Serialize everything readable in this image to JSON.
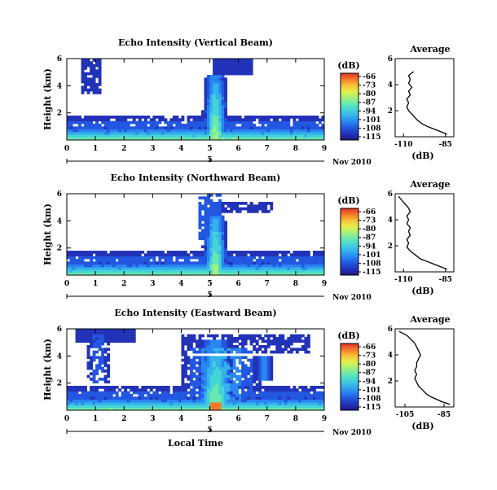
{
  "colors": {
    "colormap": [
      "#1e1a80",
      "#2233b8",
      "#2357e0",
      "#2a86f0",
      "#34b2ec",
      "#45d4d8",
      "#6ae8b0",
      "#a8f07a",
      "#e4f04a",
      "#f8c03a",
      "#f47a2a",
      "#e0302a"
    ],
    "axis": "#000000",
    "profile_line": "#000000",
    "background": "#ffffff"
  },
  "chart_data": [
    {
      "type": "heatmap",
      "title": "Echo Intensity (Vertical Beam)",
      "ylabel": "Height (km)",
      "x_ticks": [
        "0",
        "1",
        "2",
        "3",
        "4",
        "5",
        "6",
        "7",
        "8",
        "9"
      ],
      "y_ticks": [
        "2",
        "4",
        "6"
      ],
      "date_tick": "5",
      "date_label": "Nov 2010",
      "xlim": [
        0,
        9
      ],
      "ylim": [
        0,
        6
      ],
      "colorbar": {
        "unit": "(dB)",
        "ticks": [
          "-66",
          "-73",
          "-80",
          "-87",
          "-94",
          "-101",
          "-108",
          "-115"
        ],
        "range": [
          -115,
          -66
        ]
      },
      "profile": {
        "title": "Average",
        "xlabel": "(dB)",
        "x_ticks": [
          "-110",
          "-85"
        ],
        "xlim": [
          -115,
          -80
        ],
        "height": [
          0.2,
          0.4,
          0.6,
          0.8,
          1.0,
          1.3,
          1.6,
          2.0,
          2.3,
          2.6,
          2.9,
          3.2,
          3.5,
          3.8,
          4.1,
          4.4,
          4.7,
          5.0
        ],
        "db": [
          -84,
          -88,
          -92,
          -96,
          -99,
          -102,
          -104,
          -107,
          -108,
          -107,
          -108,
          -106,
          -107,
          -105,
          -107,
          -106,
          -107,
          -104
        ]
      }
    },
    {
      "type": "heatmap",
      "title": "Echo Intensity (Northward Beam)",
      "ylabel": "Height (km)",
      "x_ticks": [
        "0",
        "1",
        "2",
        "3",
        "4",
        "5",
        "6",
        "7",
        "8",
        "9"
      ],
      "y_ticks": [
        "2",
        "4",
        "6"
      ],
      "date_tick": "5",
      "date_label": "Nov 2010",
      "xlim": [
        0,
        9
      ],
      "ylim": [
        0,
        6
      ],
      "colorbar": {
        "unit": "(dB)",
        "ticks": [
          "-66",
          "-73",
          "-80",
          "-87",
          "-94",
          "-101",
          "-108",
          "-115"
        ],
        "range": [
          -115,
          -66
        ]
      },
      "profile": {
        "title": "Average",
        "xlabel": "(dB)",
        "x_ticks": [
          "-110",
          "-85"
        ],
        "xlim": [
          -115,
          -80
        ],
        "height": [
          0.2,
          0.4,
          0.6,
          0.8,
          1.0,
          1.3,
          1.6,
          1.9,
          2.2,
          2.5,
          2.8,
          3.1,
          3.4,
          3.7,
          4.0,
          4.3,
          4.6,
          4.9,
          5.2,
          5.5,
          5.8
        ],
        "db": [
          -84,
          -88,
          -92,
          -96,
          -100,
          -103,
          -106,
          -108,
          -107,
          -108,
          -106,
          -107,
          -106,
          -108,
          -107,
          -108,
          -106,
          -107,
          -109,
          -111,
          -113
        ]
      }
    },
    {
      "type": "heatmap",
      "title": "Echo Intensity (Eastward Beam)",
      "ylabel": "Height (km)",
      "xlabel": "Local Time",
      "x_ticks": [
        "0",
        "1",
        "2",
        "3",
        "4",
        "5",
        "6",
        "7",
        "8",
        "9"
      ],
      "y_ticks": [
        "2",
        "4",
        "6"
      ],
      "date_tick": "5",
      "date_label": "Nov 2010",
      "xlim": [
        0,
        9
      ],
      "ylim": [
        0,
        6
      ],
      "colorbar": {
        "unit": "(dB)",
        "ticks": [
          "-66",
          "-73",
          "-80",
          "-87",
          "-94",
          "-101",
          "-108",
          "-115"
        ],
        "range": [
          -115,
          -66
        ]
      },
      "profile": {
        "title": "Average",
        "xlabel": "(dB)",
        "x_ticks": [
          "-105",
          "-85"
        ],
        "xlim": [
          -110,
          -80
        ],
        "height": [
          0.2,
          0.4,
          0.6,
          0.8,
          1.0,
          1.3,
          1.6,
          1.9,
          2.2,
          2.5,
          2.8,
          3.1,
          3.4,
          3.7,
          4.0,
          4.3,
          4.6,
          4.9,
          5.2,
          5.5,
          5.8
        ],
        "db": [
          -82,
          -86,
          -89,
          -92,
          -94,
          -96,
          -98,
          -99,
          -100,
          -99,
          -100,
          -99,
          -99,
          -98,
          -97,
          -98,
          -99,
          -100,
          -102,
          -104,
          -108
        ]
      }
    }
  ]
}
